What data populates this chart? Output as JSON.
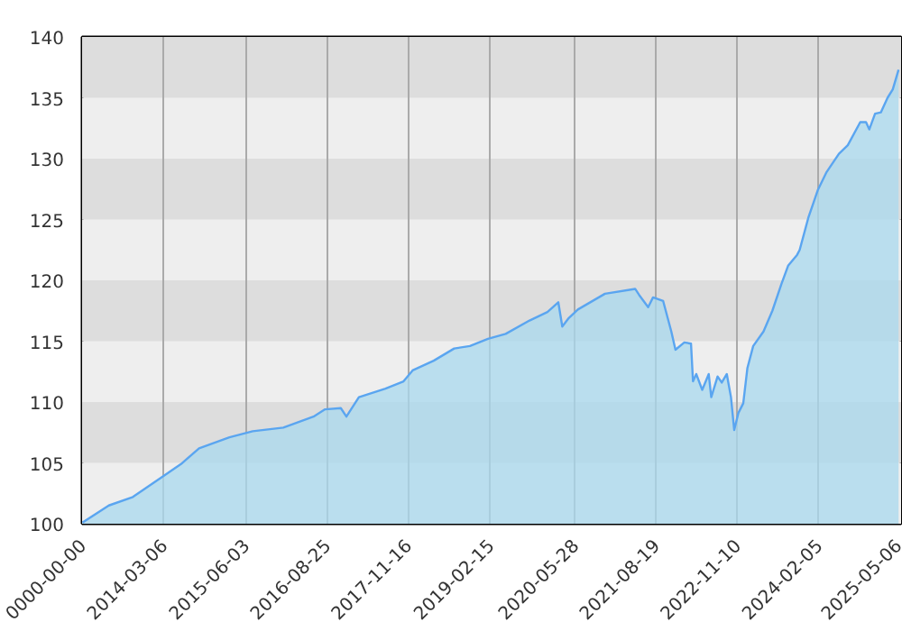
{
  "chart_data": {
    "type": "area",
    "xlim": [
      "2012-12-10",
      "2025-05-06"
    ],
    "xticks": [
      {
        "value": "2012-12-10",
        "label": "0000-00-00"
      },
      {
        "value": "2014-03-06",
        "label": "2014-03-06"
      },
      {
        "value": "2015-06-03",
        "label": "2015-06-03"
      },
      {
        "value": "2016-08-25",
        "label": "2016-08-25"
      },
      {
        "value": "2017-11-16",
        "label": "2017-11-16"
      },
      {
        "value": "2019-02-15",
        "label": "2019-02-15"
      },
      {
        "value": "2020-05-28",
        "label": "2020-05-28"
      },
      {
        "value": "2021-08-19",
        "label": "2021-08-19"
      },
      {
        "value": "2022-11-10",
        "label": "2022-11-10"
      },
      {
        "value": "2024-02-05",
        "label": "2024-02-05"
      },
      {
        "value": "2025-05-06",
        "label": "2025-05-06"
      }
    ],
    "ylim": [
      100,
      140
    ],
    "yticks": [
      100,
      105,
      110,
      115,
      120,
      125,
      130,
      135,
      140
    ],
    "grid": "x",
    "bands": [
      {
        "axis": "y",
        "from": 100,
        "to": 105,
        "color": "#eeeeee"
      },
      {
        "axis": "y",
        "from": 105,
        "to": 110,
        "color": "#dddddd"
      },
      {
        "axis": "y",
        "from": 110,
        "to": 115,
        "color": "#eeeeee"
      },
      {
        "axis": "y",
        "from": 115,
        "to": 120,
        "color": "#dddddd"
      },
      {
        "axis": "y",
        "from": 120,
        "to": 125,
        "color": "#eeeeee"
      },
      {
        "axis": "y",
        "from": 125,
        "to": 130,
        "color": "#dddddd"
      },
      {
        "axis": "y",
        "from": 130,
        "to": 135,
        "color": "#eeeeee"
      },
      {
        "axis": "y",
        "from": 135,
        "to": 140,
        "color": "#dddddd"
      }
    ],
    "series": [
      {
        "color": "#5aa5f0",
        "x": [
          "2012-12-12",
          "2013-05-07",
          "2013-09-17",
          "2014-03-04",
          "2014-06-10",
          "2014-09-18",
          "2015-03-05",
          "2015-07-12",
          "2015-12-28",
          "2016-06-12",
          "2016-08-15",
          "2016-11-10",
          "2016-12-11",
          "2017-02-18",
          "2017-07-15",
          "2017-10-23",
          "2017-12-12",
          "2018-04-08",
          "2018-07-30",
          "2018-10-25",
          "2019-02-02",
          "2019-05-11",
          "2019-09-20",
          "2019-12-28",
          "2020-02-26",
          "2020-03-19",
          "2020-04-24",
          "2020-06-13",
          "2020-11-10",
          "2021-04-26",
          "2021-05-18",
          "2021-07-07",
          "2021-08-03",
          "2021-09-28",
          "2021-11-12",
          "2021-12-05",
          "2022-01-23",
          "2022-03-01",
          "2022-03-12",
          "2022-03-30",
          "2022-05-02",
          "2022-06-07",
          "2022-06-21",
          "2022-07-26",
          "2022-08-18",
          "2022-09-15",
          "2022-10-08",
          "2022-10-26",
          "2022-11-18",
          "2022-12-15",
          "2023-01-07",
          "2023-02-08",
          "2023-04-06",
          "2023-05-25",
          "2023-07-14",
          "2023-08-20",
          "2023-10-09",
          "2023-10-23",
          "2023-12-11",
          "2024-01-31",
          "2024-03-20",
          "2024-05-27",
          "2024-07-15",
          "2024-09-22",
          "2024-10-24",
          "2024-11-11",
          "2024-12-13",
          "2025-01-14",
          "2025-02-20",
          "2025-03-21",
          "2025-04-22"
        ],
        "values": [
          100.1,
          101.5,
          102.2,
          103.9,
          104.9,
          106.2,
          107.1,
          107.6,
          107.9,
          108.8,
          109.4,
          109.5,
          108.8,
          110.4,
          111.1,
          111.7,
          112.6,
          113.4,
          114.4,
          114.6,
          115.2,
          115.6,
          116.7,
          117.4,
          118.2,
          116.2,
          116.9,
          117.6,
          118.9,
          119.3,
          118.8,
          117.8,
          118.6,
          118.3,
          115.8,
          114.3,
          114.9,
          114.8,
          111.7,
          112.3,
          111.0,
          112.3,
          110.4,
          112.1,
          111.6,
          112.3,
          110.4,
          107.7,
          109.1,
          109.9,
          112.8,
          114.6,
          115.8,
          117.5,
          119.7,
          121.2,
          122.1,
          122.5,
          125.2,
          127.4,
          128.9,
          130.4,
          131.1,
          133.0,
          133.0,
          132.4,
          133.7,
          133.8,
          135.0,
          135.7,
          137.3
        ]
      }
    ]
  }
}
